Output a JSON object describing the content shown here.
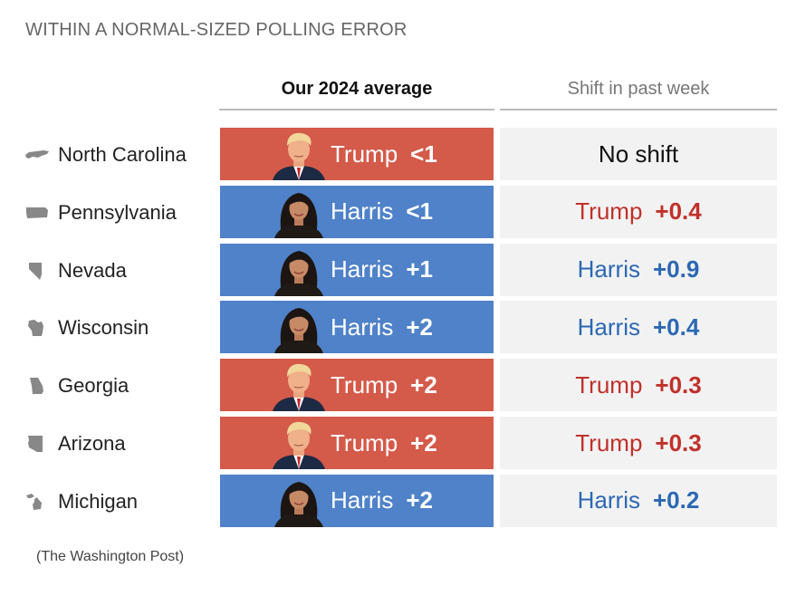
{
  "heading": "WITHIN A NORMAL-SIZED POLLING ERROR",
  "columns": {
    "average": "Our 2024 average",
    "shift": "Shift in past week"
  },
  "source": "(The Washington Post)",
  "colors": {
    "trump_fill": "#d45a4a",
    "harris_fill": "#4f82c8",
    "trump_text": "#c0312b",
    "harris_text": "#2c68b3",
    "shift_bg": "#f2f2f2",
    "state_icon": "#888888"
  },
  "chart_data": {
    "type": "table",
    "rows": [
      {
        "state": "North Carolina",
        "state_icon": "north-carolina-icon",
        "leader": "Trump",
        "margin": "<1",
        "shift_leader": "",
        "shift_value": "",
        "shift_text": "No shift"
      },
      {
        "state": "Pennsylvania",
        "state_icon": "pennsylvania-icon",
        "leader": "Harris",
        "margin": "<1",
        "shift_leader": "Trump",
        "shift_value": "+0.4",
        "shift_text": ""
      },
      {
        "state": "Nevada",
        "state_icon": "nevada-icon",
        "leader": "Harris",
        "margin": "+1",
        "shift_leader": "Harris",
        "shift_value": "+0.9",
        "shift_text": ""
      },
      {
        "state": "Wisconsin",
        "state_icon": "wisconsin-icon",
        "leader": "Harris",
        "margin": "+2",
        "shift_leader": "Harris",
        "shift_value": "+0.4",
        "shift_text": ""
      },
      {
        "state": "Georgia",
        "state_icon": "georgia-icon",
        "leader": "Trump",
        "margin": "+2",
        "shift_leader": "Trump",
        "shift_value": "+0.3",
        "shift_text": ""
      },
      {
        "state": "Arizona",
        "state_icon": "arizona-icon",
        "leader": "Trump",
        "margin": "+2",
        "shift_leader": "Trump",
        "shift_value": "+0.3",
        "shift_text": ""
      },
      {
        "state": "Michigan",
        "state_icon": "michigan-icon",
        "leader": "Harris",
        "margin": "+2",
        "shift_leader": "Harris",
        "shift_value": "+0.2",
        "shift_text": ""
      }
    ]
  }
}
